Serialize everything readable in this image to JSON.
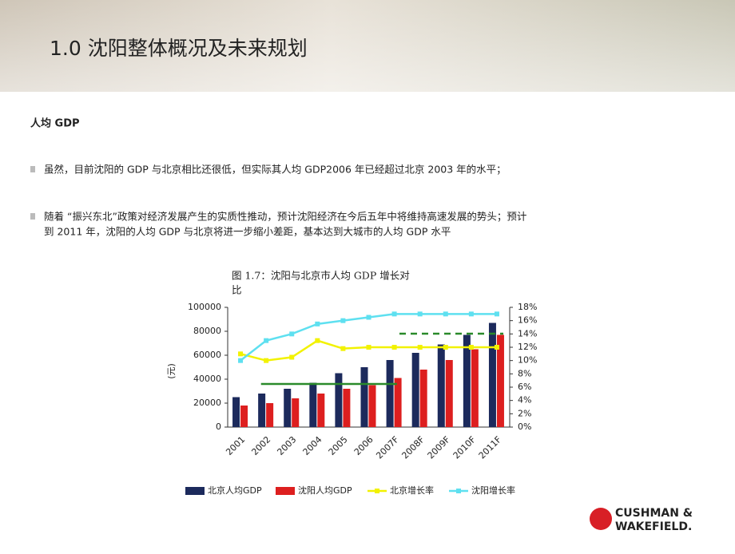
{
  "header": {
    "title": "1.0 沈阳整体概况及未来规划"
  },
  "section": "人均 GDP",
  "bullets": [
    [
      "虽然，目前沈阳的 GDP 与北京相比还很低，但实际其人均 GDP2006 年已经超过北京 2003 年的水平；"
    ],
    [
      "随着 “振兴东北”政策对经济发展产生的实质性推动，预计沈阳经济在今后五年中将维持高速发展的势头；预计",
      "到 2011 年，沈阳的人均 GDP 与北京将进一步缩小差距，基本达到大城市的人均 GDP 水平"
    ]
  ],
  "logo": [
    "CUSHMAN &",
    "WAKEFIELD."
  ],
  "chart_data": {
    "type": "bar",
    "title": [
      "图 1.7：沈阳与北京市人均 GDP 增长对",
      "比"
    ],
    "y_label": "(元)",
    "categories": [
      "2001",
      "2002",
      "2003",
      "2004",
      "2005",
      "2006",
      "2007F",
      "2008F",
      "2009F",
      "2010F",
      "2011F"
    ],
    "series": [
      {
        "name": "北京人均GDP",
        "type": "bar",
        "color": "#1c2a5c",
        "values": [
          25000,
          28000,
          32000,
          37000,
          45000,
          50000,
          56000,
          62000,
          69000,
          77000,
          87000
        ]
      },
      {
        "name": "沈阳人均GDP",
        "type": "bar",
        "color": "#dd1f1f",
        "values": [
          18000,
          20000,
          24000,
          28000,
          32000,
          35000,
          41000,
          48000,
          56000,
          65000,
          77000
        ]
      },
      {
        "name": "北京增长率",
        "type": "line",
        "axis": "y2",
        "color": "#f2f200",
        "values": [
          11,
          10,
          10.5,
          13,
          11.8,
          12,
          12,
          12,
          12,
          12,
          12
        ]
      },
      {
        "name": "沈阳增长率",
        "type": "line",
        "axis": "y2",
        "color": "#5ee0f0",
        "values": [
          10,
          13,
          14,
          15.5,
          16,
          16.5,
          17,
          17,
          17,
          17,
          17
        ]
      }
    ],
    "ylim": [
      0,
      100000
    ],
    "yticks": [
      0,
      20000,
      40000,
      60000,
      80000,
      100000
    ],
    "y2lim": [
      0,
      18
    ],
    "y2ticks": [
      {
        "value": 0,
        "label": "0%"
      },
      {
        "value": 2,
        "label": "2%"
      },
      {
        "value": 4,
        "label": "4%"
      },
      {
        "value": 6,
        "label": "6%"
      },
      {
        "value": 8,
        "label": "8%"
      },
      {
        "value": 10,
        "label": "10%"
      },
      {
        "value": 12,
        "label": "12%"
      },
      {
        "value": 14,
        "label": "14%"
      },
      {
        "value": 16,
        "label": "16%"
      },
      {
        "value": 18,
        "label": "18%"
      }
    ]
  }
}
